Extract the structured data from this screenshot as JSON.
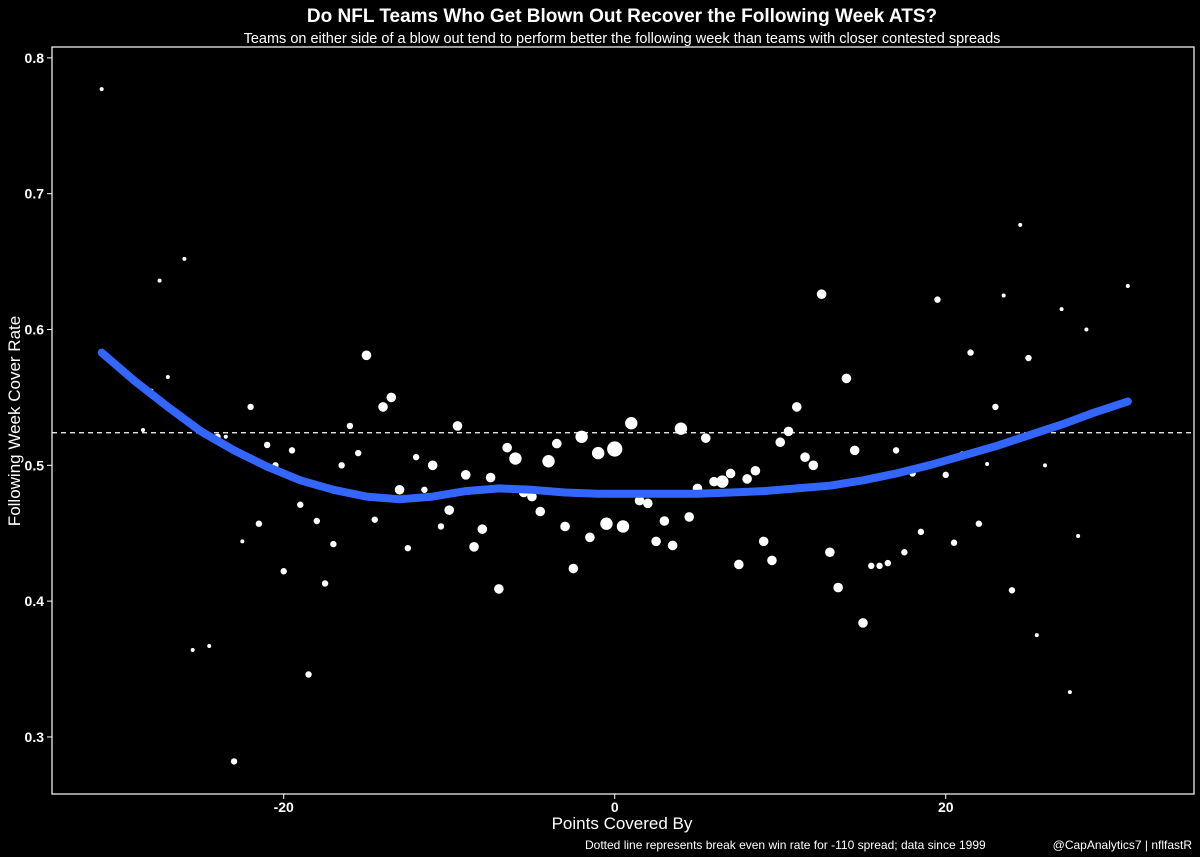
{
  "chart_data": {
    "type": "scatter",
    "title": "Do NFL Teams Who Get Blown Out Recover the Following Week ATS?",
    "subtitle": "Teams on either side of a blow out tend to perform better the following week than teams with closer contested spreads",
    "xlabel": "Points Covered By",
    "ylabel": "Following Week Cover Rate",
    "caption_left": "Dotted line represents break even win rate for -110 spread; data since 1999",
    "caption_right": "@CapAnalytics7 | nflfastR",
    "xlim": [
      -34,
      35
    ],
    "ylim": [
      0.258,
      0.808
    ],
    "x_ticks": [
      -20,
      0,
      20
    ],
    "x_tick_labels": [
      "-20",
      "0",
      "20"
    ],
    "y_ticks": [
      0.3,
      0.4,
      0.5,
      0.6,
      0.7,
      0.8
    ],
    "y_tick_labels": [
      "0.3",
      "0.4",
      "0.5",
      "0.6",
      "0.7",
      "0.8"
    ],
    "reference_line": {
      "y": 0.524,
      "style": "dashed"
    },
    "grid": false,
    "colors": {
      "background": "#000000",
      "points": "#ffffff",
      "smooth": "#3366ff",
      "axis": "#ffffff"
    },
    "points": [
      {
        "x": -31,
        "y": 0.777,
        "size": 1
      },
      {
        "x": -28,
        "y": 0.555,
        "size": 1
      },
      {
        "x": -28.5,
        "y": 0.526,
        "size": 1
      },
      {
        "x": -27.5,
        "y": 0.636,
        "size": 1
      },
      {
        "x": -27,
        "y": 0.565,
        "size": 1
      },
      {
        "x": -26,
        "y": 0.652,
        "size": 1
      },
      {
        "x": -25.5,
        "y": 0.364,
        "size": 1
      },
      {
        "x": -25,
        "y": 0.526,
        "size": 1
      },
      {
        "x": -24.5,
        "y": 0.367,
        "size": 1
      },
      {
        "x": -24,
        "y": 0.521,
        "size": 2
      },
      {
        "x": -23.5,
        "y": 0.521,
        "size": 1
      },
      {
        "x": -23,
        "y": 0.282,
        "size": 2
      },
      {
        "x": -22.5,
        "y": 0.444,
        "size": 1
      },
      {
        "x": -22,
        "y": 0.543,
        "size": 2
      },
      {
        "x": -21.5,
        "y": 0.457,
        "size": 2
      },
      {
        "x": -21,
        "y": 0.515,
        "size": 2
      },
      {
        "x": -20.5,
        "y": 0.5,
        "size": 2
      },
      {
        "x": -20,
        "y": 0.422,
        "size": 2
      },
      {
        "x": -19.5,
        "y": 0.511,
        "size": 2
      },
      {
        "x": -19,
        "y": 0.471,
        "size": 2
      },
      {
        "x": -18.5,
        "y": 0.346,
        "size": 2
      },
      {
        "x": -18,
        "y": 0.459,
        "size": 2
      },
      {
        "x": -17.5,
        "y": 0.413,
        "size": 2
      },
      {
        "x": -17,
        "y": 0.442,
        "size": 2
      },
      {
        "x": -16.5,
        "y": 0.5,
        "size": 2
      },
      {
        "x": -16,
        "y": 0.529,
        "size": 2
      },
      {
        "x": -15.5,
        "y": 0.509,
        "size": 2
      },
      {
        "x": -15,
        "y": 0.581,
        "size": 3
      },
      {
        "x": -14.5,
        "y": 0.46,
        "size": 2
      },
      {
        "x": -14,
        "y": 0.543,
        "size": 3
      },
      {
        "x": -13.5,
        "y": 0.55,
        "size": 3
      },
      {
        "x": -13,
        "y": 0.482,
        "size": 3
      },
      {
        "x": -12.5,
        "y": 0.439,
        "size": 2
      },
      {
        "x": -12,
        "y": 0.506,
        "size": 2
      },
      {
        "x": -11.5,
        "y": 0.482,
        "size": 2
      },
      {
        "x": -11,
        "y": 0.5,
        "size": 3
      },
      {
        "x": -10.5,
        "y": 0.455,
        "size": 2
      },
      {
        "x": -10,
        "y": 0.467,
        "size": 3
      },
      {
        "x": -9.5,
        "y": 0.529,
        "size": 3
      },
      {
        "x": -9,
        "y": 0.493,
        "size": 3
      },
      {
        "x": -8.5,
        "y": 0.44,
        "size": 3
      },
      {
        "x": -8,
        "y": 0.453,
        "size": 3
      },
      {
        "x": -7.5,
        "y": 0.491,
        "size": 3
      },
      {
        "x": -7,
        "y": 0.409,
        "size": 3
      },
      {
        "x": -6.5,
        "y": 0.513,
        "size": 3
      },
      {
        "x": -6,
        "y": 0.505,
        "size": 4
      },
      {
        "x": -5.5,
        "y": 0.48,
        "size": 3
      },
      {
        "x": -5,
        "y": 0.477,
        "size": 3
      },
      {
        "x": -4.5,
        "y": 0.466,
        "size": 3
      },
      {
        "x": -4,
        "y": 0.503,
        "size": 4
      },
      {
        "x": -3.5,
        "y": 0.516,
        "size": 3
      },
      {
        "x": -3,
        "y": 0.455,
        "size": 3
      },
      {
        "x": -2.5,
        "y": 0.424,
        "size": 3
      },
      {
        "x": -2,
        "y": 0.521,
        "size": 4
      },
      {
        "x": -1.5,
        "y": 0.447,
        "size": 3
      },
      {
        "x": -1,
        "y": 0.509,
        "size": 4
      },
      {
        "x": -0.5,
        "y": 0.457,
        "size": 4
      },
      {
        "x": 0,
        "y": 0.512,
        "size": 5
      },
      {
        "x": 0.5,
        "y": 0.455,
        "size": 4
      },
      {
        "x": 1,
        "y": 0.531,
        "size": 4
      },
      {
        "x": 1.5,
        "y": 0.474,
        "size": 3
      },
      {
        "x": 2,
        "y": 0.472,
        "size": 3
      },
      {
        "x": 2.5,
        "y": 0.444,
        "size": 3
      },
      {
        "x": 3,
        "y": 0.459,
        "size": 3
      },
      {
        "x": 3.5,
        "y": 0.441,
        "size": 3
      },
      {
        "x": 4,
        "y": 0.527,
        "size": 4
      },
      {
        "x": 4.5,
        "y": 0.462,
        "size": 3
      },
      {
        "x": 5,
        "y": 0.483,
        "size": 3
      },
      {
        "x": 5.5,
        "y": 0.52,
        "size": 3
      },
      {
        "x": 6,
        "y": 0.488,
        "size": 3
      },
      {
        "x": 6.5,
        "y": 0.488,
        "size": 4
      },
      {
        "x": 7,
        "y": 0.494,
        "size": 3
      },
      {
        "x": 7.5,
        "y": 0.427,
        "size": 3
      },
      {
        "x": 8,
        "y": 0.49,
        "size": 3
      },
      {
        "x": 8.5,
        "y": 0.496,
        "size": 3
      },
      {
        "x": 9,
        "y": 0.444,
        "size": 3
      },
      {
        "x": 9.5,
        "y": 0.43,
        "size": 3
      },
      {
        "x": 10,
        "y": 0.517,
        "size": 3
      },
      {
        "x": 10.5,
        "y": 0.525,
        "size": 3
      },
      {
        "x": 11,
        "y": 0.543,
        "size": 3
      },
      {
        "x": 11.5,
        "y": 0.506,
        "size": 3
      },
      {
        "x": 12,
        "y": 0.5,
        "size": 3
      },
      {
        "x": 12.5,
        "y": 0.626,
        "size": 3
      },
      {
        "x": 13,
        "y": 0.436,
        "size": 3
      },
      {
        "x": 13.5,
        "y": 0.41,
        "size": 3
      },
      {
        "x": 14,
        "y": 0.564,
        "size": 3
      },
      {
        "x": 14.5,
        "y": 0.511,
        "size": 3
      },
      {
        "x": 15,
        "y": 0.384,
        "size": 3
      },
      {
        "x": 15.5,
        "y": 0.426,
        "size": 2
      },
      {
        "x": 16,
        "y": 0.426,
        "size": 2
      },
      {
        "x": 16.5,
        "y": 0.428,
        "size": 2
      },
      {
        "x": 17,
        "y": 0.511,
        "size": 2
      },
      {
        "x": 17.5,
        "y": 0.436,
        "size": 2
      },
      {
        "x": 18,
        "y": 0.494,
        "size": 2
      },
      {
        "x": 18.5,
        "y": 0.451,
        "size": 2
      },
      {
        "x": 19,
        "y": 0.5,
        "size": 2
      },
      {
        "x": 19.5,
        "y": 0.622,
        "size": 2
      },
      {
        "x": 20,
        "y": 0.493,
        "size": 2
      },
      {
        "x": 20.5,
        "y": 0.443,
        "size": 2
      },
      {
        "x": 21,
        "y": 0.508,
        "size": 2
      },
      {
        "x": 21.5,
        "y": 0.583,
        "size": 2
      },
      {
        "x": 22,
        "y": 0.457,
        "size": 2
      },
      {
        "x": 22.5,
        "y": 0.501,
        "size": 1
      },
      {
        "x": 23,
        "y": 0.543,
        "size": 2
      },
      {
        "x": 23.5,
        "y": 0.625,
        "size": 1
      },
      {
        "x": 24,
        "y": 0.408,
        "size": 2
      },
      {
        "x": 24.5,
        "y": 0.677,
        "size": 1
      },
      {
        "x": 25,
        "y": 0.579,
        "size": 2
      },
      {
        "x": 25.5,
        "y": 0.375,
        "size": 1
      },
      {
        "x": 26,
        "y": 0.5,
        "size": 1
      },
      {
        "x": 27,
        "y": 0.615,
        "size": 1
      },
      {
        "x": 27.5,
        "y": 0.333,
        "size": 1
      },
      {
        "x": 28,
        "y": 0.448,
        "size": 1
      },
      {
        "x": 28.5,
        "y": 0.6,
        "size": 1
      },
      {
        "x": 31,
        "y": 0.632,
        "size": 1
      }
    ],
    "smooth_line": [
      {
        "x": -31,
        "y": 0.583
      },
      {
        "x": -29,
        "y": 0.562
      },
      {
        "x": -27,
        "y": 0.543
      },
      {
        "x": -25,
        "y": 0.525
      },
      {
        "x": -23,
        "y": 0.511
      },
      {
        "x": -21,
        "y": 0.499
      },
      {
        "x": -19,
        "y": 0.489
      },
      {
        "x": -17,
        "y": 0.482
      },
      {
        "x": -15,
        "y": 0.477
      },
      {
        "x": -13,
        "y": 0.475
      },
      {
        "x": -11,
        "y": 0.477
      },
      {
        "x": -9,
        "y": 0.481
      },
      {
        "x": -7,
        "y": 0.483
      },
      {
        "x": -5,
        "y": 0.482
      },
      {
        "x": -3,
        "y": 0.48
      },
      {
        "x": -1,
        "y": 0.479
      },
      {
        "x": 1,
        "y": 0.479
      },
      {
        "x": 3,
        "y": 0.479
      },
      {
        "x": 5,
        "y": 0.479
      },
      {
        "x": 7,
        "y": 0.48
      },
      {
        "x": 9,
        "y": 0.481
      },
      {
        "x": 11,
        "y": 0.483
      },
      {
        "x": 13,
        "y": 0.485
      },
      {
        "x": 15,
        "y": 0.489
      },
      {
        "x": 17,
        "y": 0.494
      },
      {
        "x": 19,
        "y": 0.5
      },
      {
        "x": 21,
        "y": 0.507
      },
      {
        "x": 23,
        "y": 0.514
      },
      {
        "x": 25,
        "y": 0.522
      },
      {
        "x": 27,
        "y": 0.53
      },
      {
        "x": 29,
        "y": 0.539
      },
      {
        "x": 31,
        "y": 0.547
      }
    ]
  }
}
